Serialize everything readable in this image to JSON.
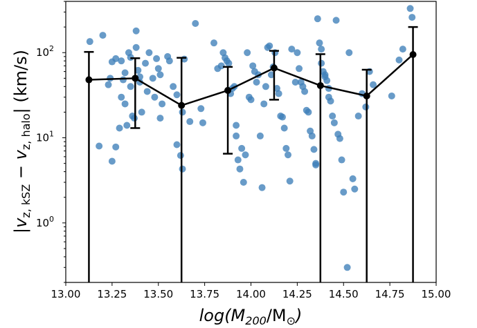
{
  "chart_data": {
    "type": "scatter",
    "title": "",
    "xlabel": {
      "main": "log(M",
      "sub": "200",
      "rest": "/M",
      "sun": "⊙",
      "close": ")"
    },
    "ylabel": {
      "bar": "|",
      "v1": "v",
      "s1": "z, kSZ",
      "minus": " − ",
      "v2": "v",
      "s2": "z, halo",
      "bar2": "|",
      "units": " (km/s)"
    },
    "xlim": [
      13.0,
      15.0
    ],
    "ylim_log10": [
      -0.7,
      0.6
    ],
    "yscale": "log",
    "ylim": [
      0.2,
      400
    ],
    "x_ticks": [
      "13.00",
      "13.25",
      "13.50",
      "13.75",
      "14.00",
      "14.25",
      "14.50",
      "14.75",
      "15.00"
    ],
    "x_tick_values": [
      13.0,
      13.25,
      13.5,
      13.75,
      14.0,
      14.25,
      14.5,
      14.75,
      15.0
    ],
    "y_ticks": [
      {
        "value": 1,
        "base": "10",
        "exp": "0"
      },
      {
        "value": 10,
        "base": "10",
        "exp": "1"
      },
      {
        "value": 100,
        "base": "10",
        "exp": "2"
      }
    ],
    "scatter": {
      "color": "#3d7fb8",
      "points": [
        [
          13.13,
          135
        ],
        [
          13.18,
          8
        ],
        [
          13.2,
          160
        ],
        [
          13.23,
          42
        ],
        [
          13.24,
          50
        ],
        [
          13.25,
          78
        ],
        [
          13.25,
          5.3
        ],
        [
          13.27,
          85
        ],
        [
          13.27,
          7.8
        ],
        [
          13.29,
          13
        ],
        [
          13.3,
          80
        ],
        [
          13.3,
          30
        ],
        [
          13.31,
          48
        ],
        [
          13.32,
          58
        ],
        [
          13.32,
          25
        ],
        [
          13.33,
          14
        ],
        [
          13.34,
          100
        ],
        [
          13.35,
          88
        ],
        [
          13.35,
          40
        ],
        [
          13.36,
          18
        ],
        [
          13.37,
          17
        ],
        [
          13.38,
          115
        ],
        [
          13.38,
          180
        ],
        [
          13.39,
          62
        ],
        [
          13.4,
          52
        ],
        [
          13.4,
          45
        ],
        [
          13.41,
          20
        ],
        [
          13.43,
          75
        ],
        [
          13.44,
          35
        ],
        [
          13.45,
          100
        ],
        [
          13.47,
          50
        ],
        [
          13.48,
          30
        ],
        [
          13.49,
          85
        ],
        [
          13.5,
          65
        ],
        [
          13.51,
          17
        ],
        [
          13.51,
          55
        ],
        [
          13.52,
          25
        ],
        [
          13.55,
          90
        ],
        [
          13.56,
          80
        ],
        [
          13.58,
          40
        ],
        [
          13.6,
          32
        ],
        [
          13.6,
          8.3
        ],
        [
          13.62,
          6.2
        ],
        [
          13.63,
          4.3
        ],
        [
          13.63,
          20
        ],
        [
          13.64,
          84
        ],
        [
          13.67,
          15.5
        ],
        [
          13.7,
          220
        ],
        [
          13.73,
          22
        ],
        [
          13.74,
          15
        ],
        [
          13.8,
          130
        ],
        [
          13.82,
          65
        ],
        [
          13.84,
          70
        ],
        [
          13.85,
          100
        ],
        [
          13.86,
          87
        ],
        [
          13.87,
          80
        ],
        [
          13.88,
          75
        ],
        [
          13.89,
          33
        ],
        [
          13.9,
          38
        ],
        [
          13.91,
          40
        ],
        [
          13.92,
          14
        ],
        [
          13.92,
          10.5
        ],
        [
          13.93,
          5.5
        ],
        [
          13.94,
          4.3
        ],
        [
          13.95,
          7.5
        ],
        [
          13.96,
          3
        ],
        [
          13.97,
          6.3
        ],
        [
          13.98,
          100
        ],
        [
          13.99,
          30
        ],
        [
          14.0,
          28
        ],
        [
          14.01,
          70
        ],
        [
          14.02,
          60
        ],
        [
          14.03,
          45
        ],
        [
          14.04,
          55
        ],
        [
          14.05,
          10.5
        ],
        [
          14.06,
          2.6
        ],
        [
          14.07,
          25
        ],
        [
          14.08,
          40
        ],
        [
          14.09,
          115
        ],
        [
          14.1,
          120
        ],
        [
          14.11,
          55
        ],
        [
          14.12,
          68
        ],
        [
          14.13,
          100
        ],
        [
          14.14,
          38
        ],
        [
          14.15,
          33
        ],
        [
          14.16,
          18
        ],
        [
          14.17,
          17.5
        ],
        [
          14.18,
          13
        ],
        [
          14.19,
          7.5
        ],
        [
          14.2,
          6.3
        ],
        [
          14.21,
          3.1
        ],
        [
          14.22,
          110
        ],
        [
          14.24,
          45
        ],
        [
          14.25,
          100
        ],
        [
          14.26,
          65
        ],
        [
          14.27,
          45
        ],
        [
          14.28,
          40
        ],
        [
          14.29,
          35
        ],
        [
          14.3,
          21
        ],
        [
          14.31,
          20
        ],
        [
          14.32,
          12
        ],
        [
          14.33,
          10.5
        ],
        [
          14.34,
          7.3
        ],
        [
          14.35,
          5
        ],
        [
          14.35,
          4.8
        ],
        [
          14.36,
          250
        ],
        [
          14.37,
          130
        ],
        [
          14.38,
          110
        ],
        [
          14.38,
          75
        ],
        [
          14.39,
          60
        ],
        [
          14.4,
          55
        ],
        [
          14.4,
          52
        ],
        [
          14.41,
          47
        ],
        [
          14.42,
          38
        ],
        [
          14.42,
          30
        ],
        [
          14.43,
          27
        ],
        [
          14.44,
          18
        ],
        [
          14.45,
          15
        ],
        [
          14.46,
          240
        ],
        [
          14.47,
          11
        ],
        [
          14.48,
          9.8
        ],
        [
          14.49,
          5.5
        ],
        [
          14.5,
          2.3
        ],
        [
          14.52,
          0.3
        ],
        [
          14.53,
          100
        ],
        [
          14.55,
          3.3
        ],
        [
          14.56,
          2.5
        ],
        [
          14.58,
          18
        ],
        [
          14.6,
          33
        ],
        [
          14.62,
          23
        ],
        [
          14.64,
          60
        ],
        [
          14.66,
          42
        ],
        [
          14.76,
          31
        ],
        [
          14.8,
          82
        ],
        [
          14.82,
          110
        ],
        [
          14.86,
          330
        ],
        [
          14.87,
          260
        ]
      ]
    },
    "binned_series": {
      "color": "#000000",
      "x": [
        13.125,
        13.375,
        13.625,
        13.875,
        14.125,
        14.375,
        14.625,
        14.875
      ],
      "values": [
        48,
        50,
        24,
        36,
        66,
        41,
        31,
        95
      ],
      "err_low": [
        0.2,
        13,
        0.2,
        6.5,
        28,
        0.2,
        0.2,
        0.2
      ],
      "err_high": [
        102,
        86,
        87,
        68,
        105,
        96,
        63,
        200
      ]
    }
  }
}
